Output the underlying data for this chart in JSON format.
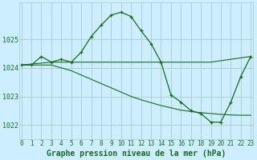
{
  "background_color": "#cceeff",
  "grid_color": "#aacccc",
  "line_color": "#1a6b1a",
  "x_min": 0,
  "x_max": 23,
  "y_min": 1021.5,
  "y_max": 1026.3,
  "y_ticks": [
    1022,
    1023,
    1024,
    1025
  ],
  "x_ticks": [
    0,
    1,
    2,
    3,
    4,
    5,
    6,
    7,
    8,
    9,
    10,
    11,
    12,
    13,
    14,
    15,
    16,
    17,
    18,
    19,
    20,
    21,
    22,
    23
  ],
  "line1_x": [
    0,
    1,
    2,
    3,
    4,
    5,
    6,
    7,
    8,
    9,
    10,
    11,
    12,
    13,
    14,
    15,
    16,
    17,
    18,
    19,
    20,
    21,
    22,
    23
  ],
  "line1_y": [
    1024.1,
    1024.1,
    1024.4,
    1024.2,
    1024.3,
    1024.2,
    1024.55,
    1025.1,
    1025.5,
    1025.85,
    1025.95,
    1025.8,
    1025.3,
    1024.85,
    1024.2,
    1023.05,
    1022.8,
    1022.5,
    1022.4,
    1022.1,
    1022.1,
    1022.8,
    1023.7,
    1024.4
  ],
  "line2_x": [
    0,
    3,
    13,
    14,
    19,
    23
  ],
  "line2_y": [
    1024.1,
    1024.2,
    1024.2,
    1024.2,
    1024.2,
    1024.4
  ],
  "line3_x": [
    0,
    1,
    2,
    3,
    4,
    5,
    6,
    7,
    8,
    9,
    10,
    11,
    12,
    13,
    14,
    15,
    16,
    17,
    18,
    19,
    20,
    21,
    22,
    23
  ],
  "line3_y": [
    1024.1,
    1024.1,
    1024.1,
    1024.1,
    1024.0,
    1023.9,
    1023.75,
    1023.6,
    1023.45,
    1023.3,
    1023.15,
    1023.0,
    1022.88,
    1022.78,
    1022.68,
    1022.6,
    1022.52,
    1022.47,
    1022.43,
    1022.4,
    1022.37,
    1022.35,
    1022.34,
    1022.34
  ],
  "xlabel": "Graphe pression niveau de la mer (hPa)",
  "xlabel_color": "#1a6b1a",
  "tick_fontsize": 5.5,
  "xlabel_fontsize": 7.0
}
